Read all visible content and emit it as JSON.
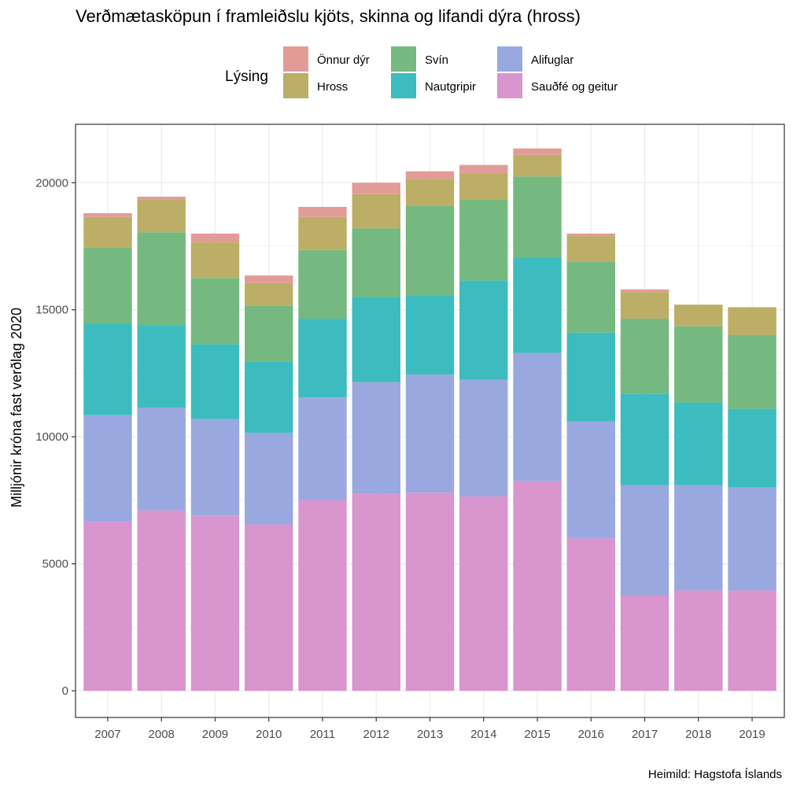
{
  "chart_data": {
    "type": "bar",
    "stacked": true,
    "title": "Verðmætasköpun í framleiðslu kjöts, skinna og lifandi dýra (hross)",
    "xlabel": "",
    "ylabel": "Milljónir króna fast verðlag 2020",
    "ylim": [
      -1050,
      22300
    ],
    "yticks": [
      0,
      5000,
      10000,
      15000,
      20000
    ],
    "grid": true,
    "legend_position": "top",
    "legend_title": "Lýsing",
    "categories": [
      "2007",
      "2008",
      "2009",
      "2010",
      "2011",
      "2012",
      "2013",
      "2014",
      "2015",
      "2016",
      "2017",
      "2018",
      "2019"
    ],
    "series": [
      {
        "name": "Sauðfé og geitur",
        "color": "#D895CE",
        "values": [
          6650,
          7100,
          6900,
          6550,
          7500,
          7750,
          7800,
          7650,
          8250,
          6000,
          3750,
          3950,
          3950
        ]
      },
      {
        "name": "Alifuglar",
        "color": "#99A9E0",
        "values": [
          4200,
          4050,
          3800,
          3600,
          4050,
          4400,
          4650,
          4600,
          5050,
          4600,
          4350,
          4150,
          4050
        ]
      },
      {
        "name": "Nautgripir",
        "color": "#3CBCBE",
        "values": [
          3600,
          3250,
          2950,
          2800,
          3100,
          3350,
          3100,
          3900,
          3750,
          3500,
          3600,
          3250,
          3100
        ]
      },
      {
        "name": "Svín",
        "color": "#75B981",
        "values": [
          3000,
          3650,
          2600,
          2200,
          2700,
          2700,
          3550,
          3200,
          3200,
          2800,
          2950,
          3000,
          2900
        ]
      },
      {
        "name": "Hross",
        "color": "#BCAE66",
        "values": [
          1200,
          1300,
          1400,
          900,
          1300,
          1350,
          1050,
          1000,
          850,
          1000,
          1050,
          850,
          1100
        ]
      },
      {
        "name": "Önnur dýr",
        "color": "#E29C98",
        "values": [
          150,
          100,
          350,
          300,
          400,
          450,
          300,
          350,
          250,
          100,
          100,
          0,
          0
        ]
      }
    ],
    "source": "Heimild: Hagstofa Íslands"
  }
}
